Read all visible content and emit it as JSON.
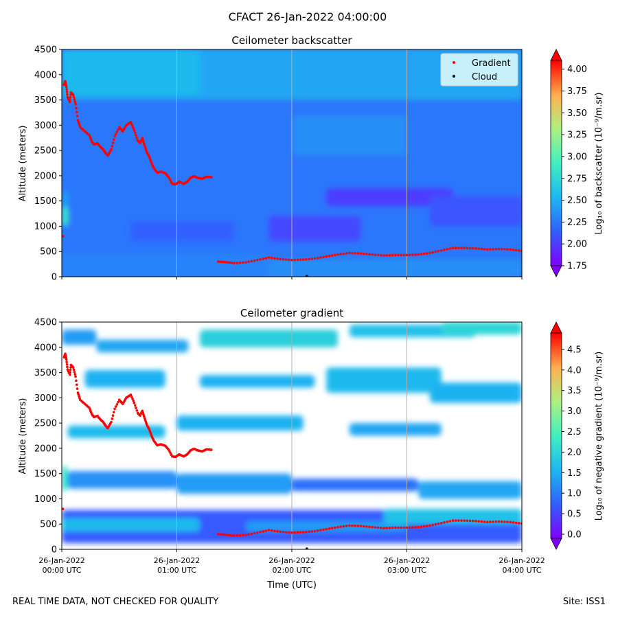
{
  "figure_title": "CFACT 26-Jan-2022 04:00:00",
  "footer": {
    "left": "REAL TIME DATA, NOT CHECKED FOR QUALITY",
    "right": "Site: ISS1"
  },
  "colors": {
    "gradient_marker": "#ff0000",
    "cloud_marker": "#000000",
    "time_gridline": "#b0b0b0"
  },
  "chart_data": [
    {
      "type": "heatmap",
      "title": "Ceilometer backscatter",
      "xlabel": "",
      "ylabel": "Altitude (meters)",
      "ylim": [
        0,
        4500
      ],
      "yticks": [
        "0",
        "500",
        "1000",
        "1500",
        "2000",
        "2500",
        "3000",
        "3500",
        "4000",
        "4500"
      ],
      "xlim_hours": [
        0,
        4
      ],
      "xtick_labels": [],
      "colorbar": {
        "label": "Log₁₀ of backscatter (10⁻⁹/m.sr)",
        "range": [
          1.75,
          4.1
        ],
        "ticks": [
          "1.75",
          "2.00",
          "2.25",
          "2.50",
          "2.75",
          "3.00",
          "3.25",
          "3.50",
          "3.75",
          "4.00"
        ]
      },
      "legend": {
        "placement": "top-right",
        "entries": [
          "Gradient",
          "Cloud"
        ]
      },
      "field": {
        "background": 2.25,
        "patches": [
          {
            "t": [
              0,
              4
            ],
            "alt": [
              3500,
              4500
            ],
            "v": 2.45
          },
          {
            "t": [
              0,
              1.2
            ],
            "alt": [
              3600,
              4500
            ],
            "v": 2.55
          },
          {
            "t": [
              0,
              0.06
            ],
            "alt": [
              1000,
              1400
            ],
            "v": 2.85
          },
          {
            "t": [
              0,
              0.06
            ],
            "alt": [
              1400,
              1700
            ],
            "v": 2.4
          },
          {
            "t": [
              0,
              4
            ],
            "alt": [
              0,
              200
            ],
            "v": 2.4
          },
          {
            "t": [
              0,
              1.8
            ],
            "alt": [
              0,
              450
            ],
            "v": 2.3
          },
          {
            "t": [
              1.8,
              4
            ],
            "alt": [
              0,
              350
            ],
            "v": 2.35
          },
          {
            "t": [
              1.8,
              2.6
            ],
            "alt": [
              700,
              1200
            ],
            "v": 2.05
          },
          {
            "t": [
              2.3,
              3.4
            ],
            "alt": [
              1400,
              1750
            ],
            "v": 2.0
          },
          {
            "t": [
              3.2,
              4
            ],
            "alt": [
              1000,
              1600
            ],
            "v": 2.1
          },
          {
            "t": [
              0.6,
              1.5
            ],
            "alt": [
              700,
              1100
            ],
            "v": 2.15
          },
          {
            "t": [
              2.0,
              3.0
            ],
            "alt": [
              2400,
              3200
            ],
            "v": 2.35
          }
        ]
      },
      "series": [
        {
          "name": "Gradient",
          "points": [
            [
              0.01,
              800
            ],
            [
              0.02,
              3800
            ],
            [
              0.03,
              3870
            ],
            [
              0.04,
              3760
            ],
            [
              0.05,
              3560
            ],
            [
              0.07,
              3460
            ],
            [
              0.08,
              3650
            ],
            [
              0.1,
              3600
            ],
            [
              0.12,
              3420
            ],
            [
              0.14,
              3100
            ],
            [
              0.16,
              2960
            ],
            [
              0.2,
              2880
            ],
            [
              0.24,
              2800
            ],
            [
              0.26,
              2680
            ],
            [
              0.28,
              2620
            ],
            [
              0.31,
              2640
            ],
            [
              0.34,
              2560
            ],
            [
              0.36,
              2520
            ],
            [
              0.38,
              2450
            ],
            [
              0.4,
              2400
            ],
            [
              0.43,
              2520
            ],
            [
              0.46,
              2780
            ],
            [
              0.5,
              2960
            ],
            [
              0.53,
              2880
            ],
            [
              0.56,
              3000
            ],
            [
              0.6,
              3060
            ],
            [
              0.63,
              2900
            ],
            [
              0.66,
              2700
            ],
            [
              0.68,
              2650
            ],
            [
              0.7,
              2740
            ],
            [
              0.72,
              2600
            ],
            [
              0.74,
              2460
            ],
            [
              0.76,
              2380
            ],
            [
              0.78,
              2250
            ],
            [
              0.8,
              2150
            ],
            [
              0.83,
              2060
            ],
            [
              0.86,
              2080
            ],
            [
              0.9,
              2050
            ],
            [
              0.93,
              1970
            ],
            [
              0.96,
              1840
            ],
            [
              0.99,
              1830
            ],
            [
              1.02,
              1880
            ],
            [
              1.06,
              1840
            ],
            [
              1.09,
              1880
            ],
            [
              1.12,
              1960
            ],
            [
              1.15,
              1990
            ],
            [
              1.18,
              1960
            ],
            [
              1.22,
              1940
            ],
            [
              1.26,
              1980
            ],
            [
              1.3,
              1970
            ],
            [
              1.36,
              300
            ],
            [
              1.42,
              290
            ],
            [
              1.5,
              270
            ],
            [
              1.6,
              285
            ],
            [
              1.7,
              330
            ],
            [
              1.8,
              380
            ],
            [
              1.9,
              350
            ],
            [
              2.0,
              330
            ],
            [
              2.1,
              340
            ],
            [
              2.2,
              360
            ],
            [
              2.3,
              400
            ],
            [
              2.4,
              440
            ],
            [
              2.5,
              470
            ],
            [
              2.6,
              460
            ],
            [
              2.7,
              440
            ],
            [
              2.8,
              420
            ],
            [
              2.9,
              430
            ],
            [
              3.0,
              430
            ],
            [
              3.1,
              440
            ],
            [
              3.2,
              470
            ],
            [
              3.3,
              520
            ],
            [
              3.4,
              570
            ],
            [
              3.5,
              570
            ],
            [
              3.6,
              560
            ],
            [
              3.7,
              540
            ],
            [
              3.8,
              550
            ],
            [
              3.9,
              540
            ],
            [
              4.0,
              510
            ]
          ]
        },
        {
          "name": "Cloud",
          "points": [
            [
              2.13,
              0
            ]
          ]
        }
      ]
    },
    {
      "type": "heatmap",
      "title": "Ceilometer gradient",
      "xlabel": "Time (UTC)",
      "ylabel": "Altitude (meters)",
      "ylim": [
        0,
        4500
      ],
      "yticks": [
        "0",
        "500",
        "1000",
        "1500",
        "2000",
        "2500",
        "3000",
        "3500",
        "4000",
        "4500"
      ],
      "xlim_hours": [
        0,
        4
      ],
      "xtick_labels": [
        [
          "26-Jan-2022",
          "00:00 UTC"
        ],
        [
          "26-Jan-2022",
          "01:00 UTC"
        ],
        [
          "26-Jan-2022",
          "02:00 UTC"
        ],
        [
          "26-Jan-2022",
          "03:00 UTC"
        ],
        [
          "26-Jan-2022",
          "04:00 UTC"
        ]
      ],
      "colorbar": {
        "label": "Log₁₀ of negative gradient (10⁻⁹/m.sr)",
        "range": [
          -0.1,
          4.9
        ],
        "ticks": [
          "0.0",
          "0.5",
          "1.0",
          "1.5",
          "2.0",
          "2.5",
          "3.0",
          "3.5",
          "4.0",
          "4.5"
        ]
      },
      "field": {
        "background": null,
        "patches": [
          {
            "t": [
              0,
              4
            ],
            "alt": [
              120,
              780
            ],
            "v": 0.7
          },
          {
            "t": [
              0,
              1.2
            ],
            "alt": [
              350,
              620
            ],
            "v": 1.6
          },
          {
            "t": [
              1.6,
              3.0
            ],
            "alt": [
              350,
              560
            ],
            "v": 1.3
          },
          {
            "t": [
              2.8,
              4
            ],
            "alt": [
              500,
              800
            ],
            "v": 1.7
          },
          {
            "t": [
              0,
              0.05
            ],
            "alt": [
              1150,
              1650
            ],
            "v": 2.2
          },
          {
            "t": [
              0.05,
              1.0
            ],
            "alt": [
              1200,
              1550
            ],
            "v": 1.2
          },
          {
            "t": [
              1.0,
              2.0
            ],
            "alt": [
              1100,
              1500
            ],
            "v": 1.3
          },
          {
            "t": [
              2.0,
              3.1
            ],
            "alt": [
              1150,
              1400
            ],
            "v": 0.9
          },
          {
            "t": [
              3.1,
              4
            ],
            "alt": [
              1000,
              1350
            ],
            "v": 1.4
          },
          {
            "t": [
              0.05,
              0.9
            ],
            "alt": [
              2200,
              2450
            ],
            "v": 1.6
          },
          {
            "t": [
              1.0,
              2.1
            ],
            "alt": [
              2350,
              2650
            ],
            "v": 1.5
          },
          {
            "t": [
              2.5,
              3.3
            ],
            "alt": [
              2250,
              2500
            ],
            "v": 1.4
          },
          {
            "t": [
              0.2,
              0.9
            ],
            "alt": [
              3200,
              3550
            ],
            "v": 1.5
          },
          {
            "t": [
              1.2,
              2.2
            ],
            "alt": [
              3200,
              3450
            ],
            "v": 1.5
          },
          {
            "t": [
              2.3,
              3.3
            ],
            "alt": [
              3100,
              3600
            ],
            "v": 1.6
          },
          {
            "t": [
              3.2,
              4
            ],
            "alt": [
              2900,
              3300
            ],
            "v": 1.5
          },
          {
            "t": [
              0.3,
              1.1
            ],
            "alt": [
              3900,
              4150
            ],
            "v": 1.4
          },
          {
            "t": [
              1.2,
              2.4
            ],
            "alt": [
              4000,
              4350
            ],
            "v": 1.9
          },
          {
            "t": [
              2.5,
              3.6
            ],
            "alt": [
              4200,
              4450
            ],
            "v": 1.7
          },
          {
            "t": [
              3.3,
              4
            ],
            "alt": [
              4250,
              4500
            ],
            "v": 2.0
          },
          {
            "t": [
              0,
              0.3
            ],
            "alt": [
              4050,
              4350
            ],
            "v": 1.3
          }
        ]
      },
      "series": [
        {
          "name": "Gradient",
          "same_as_backscatter": true
        },
        {
          "name": "Cloud",
          "points": [
            [
              2.13,
              0
            ]
          ]
        }
      ]
    }
  ]
}
